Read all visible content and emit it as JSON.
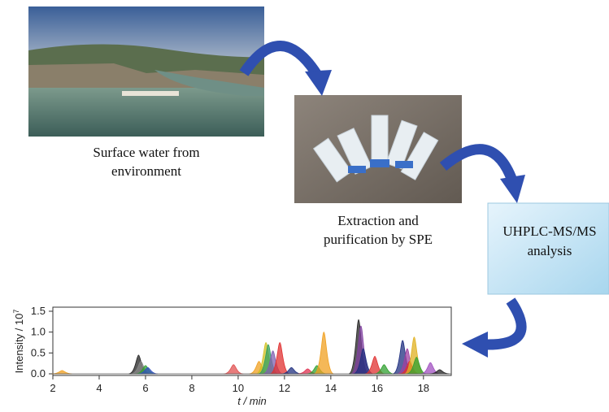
{
  "captions": {
    "source": [
      "Surface water from",
      "environment"
    ],
    "extraction": [
      "Extraction and",
      "purification by SPE"
    ],
    "analysis": [
      "UHPLC-MS/MS",
      "analysis"
    ]
  },
  "chromatogram": {
    "ylabel": "Intensity / 10",
    "ylabel_exponent": "7",
    "xlabel": "t / min",
    "xlim": [
      2,
      19.2
    ],
    "ylim": [
      0,
      1.5
    ],
    "xticks": [
      2,
      4,
      6,
      8,
      10,
      12,
      14,
      16,
      18
    ],
    "yticks": [
      {
        "value": 0,
        "label": "0.0"
      },
      {
        "value": 0.5,
        "label": "0.5"
      },
      {
        "value": 1,
        "label": "1.0"
      },
      {
        "value": 1.5,
        "label": "1.5"
      }
    ],
    "peaks": [
      {
        "t": 2.4,
        "height": 0.08,
        "color": "#f0a020"
      },
      {
        "t": 5.7,
        "height": 0.45,
        "color": "#222222"
      },
      {
        "t": 5.8,
        "height": 0.3,
        "color": "#888888"
      },
      {
        "t": 6.0,
        "height": 0.2,
        "color": "#30a030"
      },
      {
        "t": 6.1,
        "height": 0.15,
        "color": "#3050c0"
      },
      {
        "t": 9.8,
        "height": 0.22,
        "color": "#e05050"
      },
      {
        "t": 10.9,
        "height": 0.3,
        "color": "#f0a020"
      },
      {
        "t": 11.2,
        "height": 0.75,
        "color": "#d0c020"
      },
      {
        "t": 11.3,
        "height": 0.7,
        "color": "#30a060"
      },
      {
        "t": 11.5,
        "height": 0.55,
        "color": "#8060b0"
      },
      {
        "t": 11.8,
        "height": 0.75,
        "color": "#e03030"
      },
      {
        "t": 12.3,
        "height": 0.15,
        "color": "#203080"
      },
      {
        "t": 13.0,
        "height": 0.12,
        "color": "#e03050"
      },
      {
        "t": 13.4,
        "height": 0.2,
        "color": "#30a030"
      },
      {
        "t": 13.7,
        "height": 1.0,
        "color": "#f0a020"
      },
      {
        "t": 15.2,
        "height": 1.3,
        "color": "#222222"
      },
      {
        "t": 15.3,
        "height": 1.15,
        "color": "#8040a0"
      },
      {
        "t": 15.4,
        "height": 0.6,
        "color": "#203080"
      },
      {
        "t": 15.9,
        "height": 0.42,
        "color": "#e03030"
      },
      {
        "t": 16.3,
        "height": 0.22,
        "color": "#30a030"
      },
      {
        "t": 17.1,
        "height": 0.8,
        "color": "#203080"
      },
      {
        "t": 17.3,
        "height": 0.6,
        "color": "#a040a0"
      },
      {
        "t": 17.4,
        "height": 0.3,
        "color": "#e03030"
      },
      {
        "t": 17.6,
        "height": 0.88,
        "color": "#e0b020"
      },
      {
        "t": 17.7,
        "height": 0.4,
        "color": "#30a030"
      },
      {
        "t": 18.3,
        "height": 0.27,
        "color": "#a050c0"
      },
      {
        "t": 18.7,
        "height": 0.1,
        "color": "#222222"
      }
    ]
  }
}
